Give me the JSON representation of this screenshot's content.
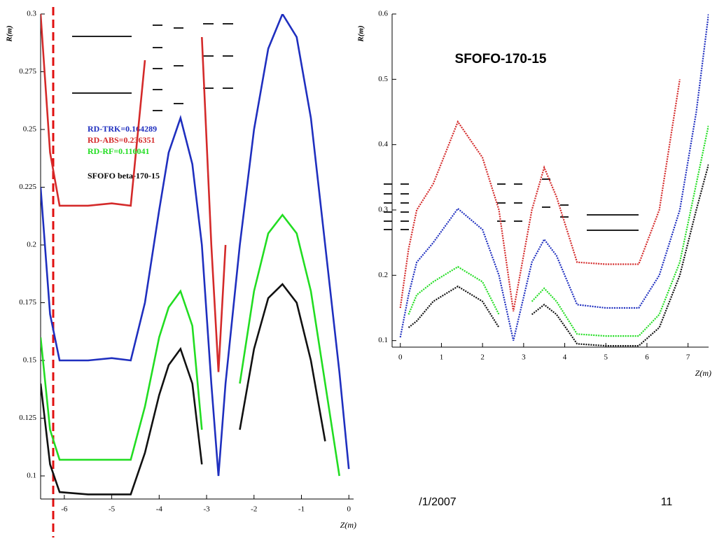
{
  "chart_data": [
    {
      "type": "line",
      "x_label": "Z(m)",
      "y_label": "R(m)",
      "x": [
        -6.5,
        -6.3,
        -6.1,
        -5.5,
        -5,
        -4.6,
        -4.3,
        -4,
        -3.8,
        -3.55,
        -3.3,
        -3.1,
        -2.9,
        -2.75,
        -2.6,
        -2.3,
        -2,
        -1.7,
        -1.4,
        -1.1,
        -0.8,
        -0.5,
        -0.2,
        0
      ],
      "series": [
        {
          "name": "RD-TRK=0.164289",
          "color": "#1f2fbf",
          "values": [
            0.225,
            0.17,
            0.15,
            0.15,
            0.151,
            0.15,
            0.175,
            0.215,
            0.24,
            0.255,
            0.235,
            0.2,
            0.14,
            0.1,
            0.14,
            0.2,
            0.25,
            0.285,
            0.3,
            0.29,
            0.255,
            0.2,
            0.145,
            0.103
          ]
        },
        {
          "name": "RD-ABS=0.236351",
          "color": "#d42a2a",
          "values": [
            0.3,
            0.24,
            0.217,
            0.217,
            0.218,
            0.217,
            0.28,
            null,
            null,
            null,
            null,
            0.29,
            0.2,
            0.145,
            0.2,
            null,
            null,
            null,
            null,
            null,
            null,
            null,
            null,
            null
          ]
        },
        {
          "name": "RD-RF=0.116041",
          "color": "#22dd22",
          "values": [
            0.16,
            0.12,
            0.107,
            0.107,
            0.107,
            0.107,
            0.13,
            0.16,
            0.173,
            0.18,
            0.165,
            0.12,
            null,
            null,
            null,
            0.14,
            0.18,
            0.205,
            0.213,
            0.205,
            0.18,
            0.14,
            0.1,
            null
          ]
        },
        {
          "color": "#111111",
          "values": [
            0.14,
            0.105,
            0.093,
            0.092,
            0.092,
            0.092,
            0.11,
            0.135,
            0.148,
            0.155,
            0.14,
            0.105,
            null,
            null,
            null,
            0.12,
            0.155,
            0.177,
            0.183,
            0.175,
            0.15,
            0.115,
            null,
            null
          ]
        }
      ],
      "annotation": "SFOFO beta-170-15",
      "xlim": [
        -6.5,
        0.1
      ],
      "xticks": [
        -6,
        -5,
        -4,
        -3,
        -2,
        -1,
        0
      ],
      "ylim": [
        0.09,
        0.3
      ],
      "yticks": [
        0.1,
        0.125,
        0.15,
        0.175,
        0.2,
        0.225,
        0.25,
        0.275,
        0.3
      ]
    },
    {
      "type": "line",
      "title": "SFOFO-170-15",
      "x_label": "Z(m)",
      "y_label": "R(m)",
      "x": [
        0,
        0.2,
        0.4,
        0.8,
        1.4,
        2.0,
        2.4,
        2.75,
        3.2,
        3.5,
        3.8,
        4.3,
        5,
        5.8,
        6.3,
        6.8,
        7.2,
        7.5
      ],
      "series": [
        {
          "color": "#d42a2a",
          "values": [
            0.15,
            0.24,
            0.3,
            0.34,
            0.435,
            0.38,
            0.3,
            0.145,
            0.3,
            0.365,
            0.32,
            0.22,
            0.217,
            0.217,
            0.3,
            0.5,
            null,
            null
          ]
        },
        {
          "color": "#1f2fbf",
          "values": [
            0.105,
            0.17,
            0.22,
            0.25,
            0.302,
            0.27,
            0.2,
            0.1,
            0.22,
            0.255,
            0.23,
            0.155,
            0.15,
            0.15,
            0.2,
            0.3,
            0.45,
            0.6
          ]
        },
        {
          "color": "#22dd22",
          "values": [
            null,
            0.14,
            0.17,
            0.19,
            0.213,
            0.19,
            0.14,
            null,
            0.16,
            0.18,
            0.16,
            0.11,
            0.107,
            0.107,
            0.14,
            0.22,
            0.34,
            0.43
          ]
        },
        {
          "color": "#111111",
          "values": [
            null,
            0.12,
            0.13,
            0.16,
            0.183,
            0.16,
            0.12,
            null,
            0.14,
            0.155,
            0.14,
            0.095,
            0.092,
            0.092,
            0.12,
            0.2,
            0.3,
            0.37
          ]
        }
      ],
      "xlim": [
        -0.2,
        7.5
      ],
      "xticks": [
        0,
        1,
        2,
        3,
        4,
        5,
        6,
        7
      ],
      "ylim": [
        0.09,
        0.6
      ],
      "yticks": [
        0.1,
        0.2,
        0.3,
        0.4,
        0.5,
        0.6
      ]
    }
  ],
  "footer": {
    "date": "/1/2007",
    "page": "11"
  }
}
